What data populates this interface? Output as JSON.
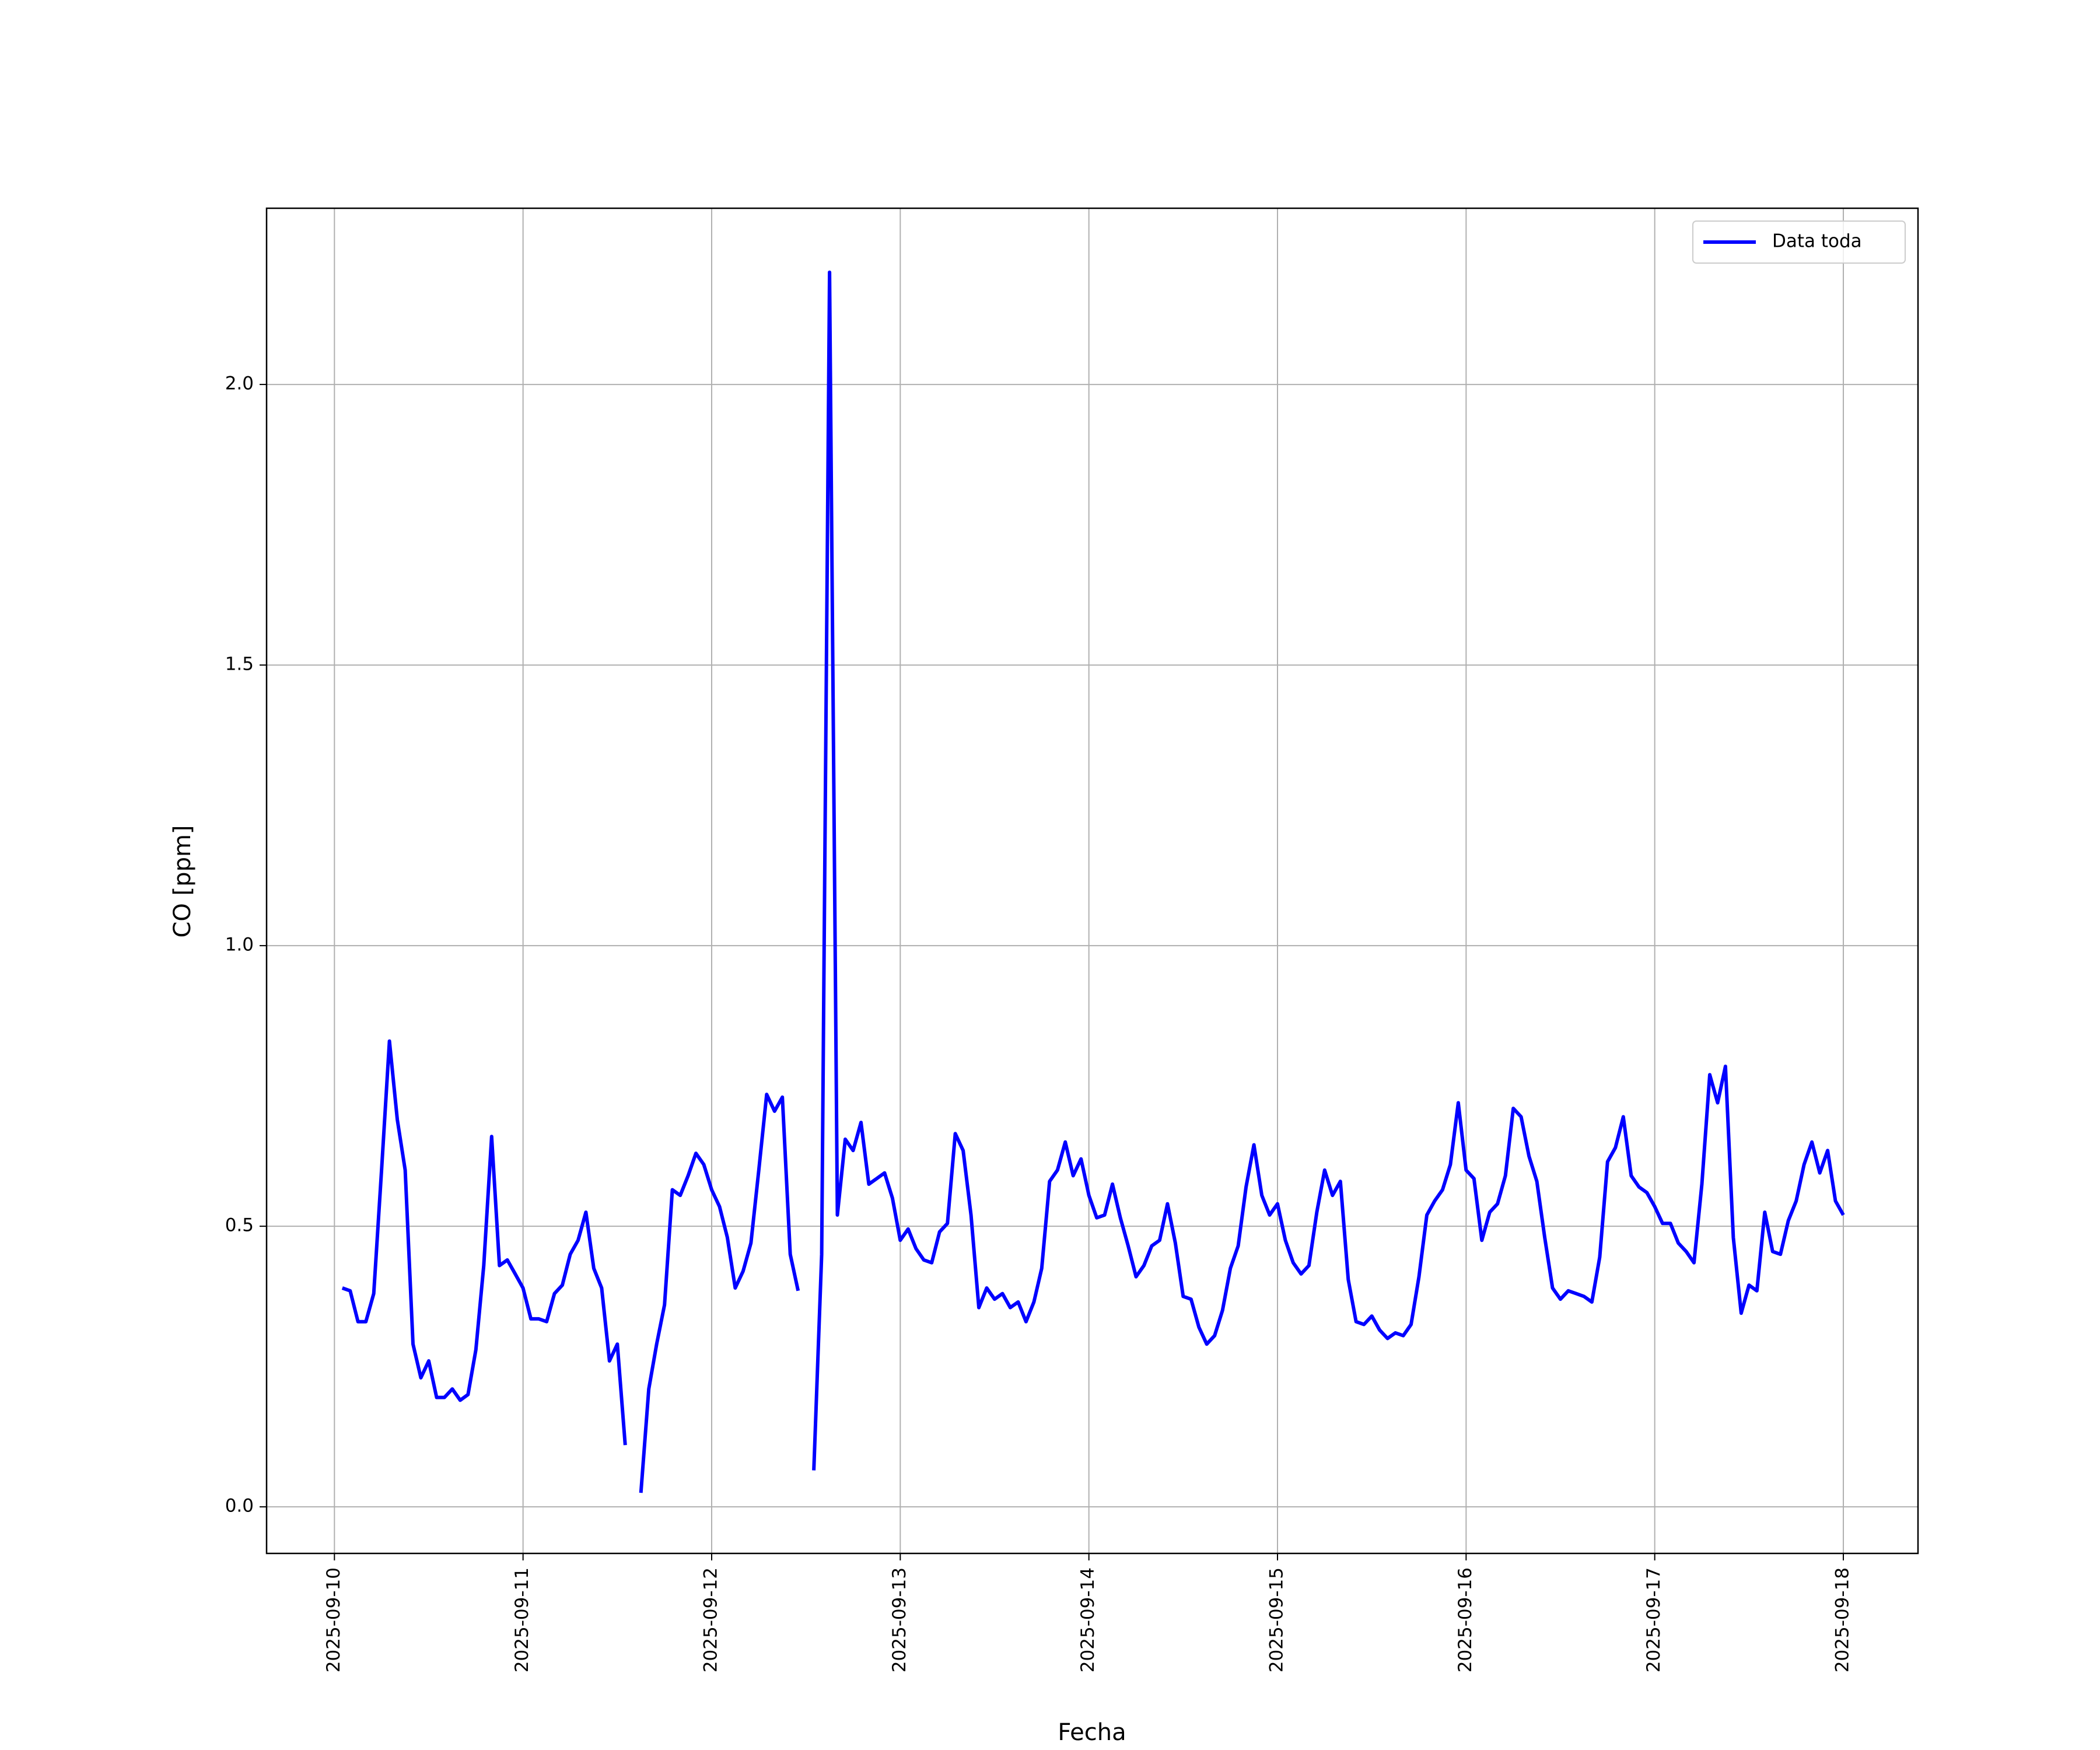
{
  "chart_data": {
    "type": "line",
    "xlabel": "Fecha",
    "ylabel": "CO [ppm]",
    "x": [
      "2025-09-10T01:00",
      "2025-09-10T02:00",
      "2025-09-10T03:00",
      "2025-09-10T04:00",
      "2025-09-10T05:00",
      "2025-09-10T06:00",
      "2025-09-10T07:00",
      "2025-09-10T08:00",
      "2025-09-10T09:00",
      "2025-09-10T10:00",
      "2025-09-10T11:00",
      "2025-09-10T12:00",
      "2025-09-10T13:00",
      "2025-09-10T14:00",
      "2025-09-10T15:00",
      "2025-09-10T16:00",
      "2025-09-10T17:00",
      "2025-09-10T18:00",
      "2025-09-10T19:00",
      "2025-09-10T20:00",
      "2025-09-10T21:00",
      "2025-09-10T22:00",
      "2025-09-10T23:00",
      "2025-09-11T00:00",
      "2025-09-11T01:00",
      "2025-09-11T02:00",
      "2025-09-11T03:00",
      "2025-09-11T04:00",
      "2025-09-11T05:00",
      "2025-09-11T06:00",
      "2025-09-11T07:00",
      "2025-09-11T08:00",
      "2025-09-11T09:00",
      "2025-09-11T10:00",
      "2025-09-11T11:00",
      "2025-09-11T12:00",
      "2025-09-11T13:00",
      "2025-09-11T14:00",
      "2025-09-11T15:00",
      "2025-09-11T16:00",
      "2025-09-11T17:00",
      "2025-09-11T18:00",
      "2025-09-11T19:00",
      "2025-09-11T20:00",
      "2025-09-11T21:00",
      "2025-09-11T22:00",
      "2025-09-11T23:00",
      "2025-09-12T00:00",
      "2025-09-12T01:00",
      "2025-09-12T02:00",
      "2025-09-12T03:00",
      "2025-09-12T04:00",
      "2025-09-12T05:00",
      "2025-09-12T06:00",
      "2025-09-12T07:00",
      "2025-09-12T08:00",
      "2025-09-12T09:00",
      "2025-09-12T10:00",
      "2025-09-12T11:00",
      "2025-09-12T12:00",
      "2025-09-12T13:00",
      "2025-09-12T14:00",
      "2025-09-12T15:00",
      "2025-09-12T16:00",
      "2025-09-12T17:00",
      "2025-09-12T18:00",
      "2025-09-12T19:00",
      "2025-09-12T20:00",
      "2025-09-12T21:00",
      "2025-09-12T22:00",
      "2025-09-12T23:00",
      "2025-09-13T00:00",
      "2025-09-13T01:00",
      "2025-09-13T02:00",
      "2025-09-13T03:00",
      "2025-09-13T04:00",
      "2025-09-13T05:00",
      "2025-09-13T06:00",
      "2025-09-13T07:00",
      "2025-09-13T08:00",
      "2025-09-13T09:00",
      "2025-09-13T10:00",
      "2025-09-13T11:00",
      "2025-09-13T12:00",
      "2025-09-13T13:00",
      "2025-09-13T14:00",
      "2025-09-13T15:00",
      "2025-09-13T16:00",
      "2025-09-13T17:00",
      "2025-09-13T18:00",
      "2025-09-13T19:00",
      "2025-09-13T20:00",
      "2025-09-13T21:00",
      "2025-09-13T22:00",
      "2025-09-13T23:00",
      "2025-09-14T00:00",
      "2025-09-14T01:00",
      "2025-09-14T02:00",
      "2025-09-14T03:00",
      "2025-09-14T04:00",
      "2025-09-14T05:00",
      "2025-09-14T06:00",
      "2025-09-14T07:00",
      "2025-09-14T08:00",
      "2025-09-14T09:00",
      "2025-09-14T10:00",
      "2025-09-14T11:00",
      "2025-09-14T12:00",
      "2025-09-14T13:00",
      "2025-09-14T14:00",
      "2025-09-14T15:00",
      "2025-09-14T16:00",
      "2025-09-14T17:00",
      "2025-09-14T18:00",
      "2025-09-14T19:00",
      "2025-09-14T20:00",
      "2025-09-14T21:00",
      "2025-09-14T22:00",
      "2025-09-14T23:00",
      "2025-09-15T00:00",
      "2025-09-15T01:00",
      "2025-09-15T02:00",
      "2025-09-15T03:00",
      "2025-09-15T04:00",
      "2025-09-15T05:00",
      "2025-09-15T06:00",
      "2025-09-15T07:00",
      "2025-09-15T08:00",
      "2025-09-15T09:00",
      "2025-09-15T10:00",
      "2025-09-15T11:00",
      "2025-09-15T12:00",
      "2025-09-15T13:00",
      "2025-09-15T14:00",
      "2025-09-15T15:00",
      "2025-09-15T16:00",
      "2025-09-15T17:00",
      "2025-09-15T18:00",
      "2025-09-15T19:00",
      "2025-09-15T20:00",
      "2025-09-15T21:00",
      "2025-09-15T22:00",
      "2025-09-15T23:00",
      "2025-09-16T00:00",
      "2025-09-16T01:00",
      "2025-09-16T02:00",
      "2025-09-16T03:00",
      "2025-09-16T04:00",
      "2025-09-16T05:00",
      "2025-09-16T06:00",
      "2025-09-16T07:00",
      "2025-09-16T08:00",
      "2025-09-16T09:00",
      "2025-09-16T10:00",
      "2025-09-16T11:00",
      "2025-09-16T12:00",
      "2025-09-16T13:00",
      "2025-09-16T14:00",
      "2025-09-16T15:00",
      "2025-09-16T16:00",
      "2025-09-16T17:00",
      "2025-09-16T18:00",
      "2025-09-16T19:00",
      "2025-09-16T20:00",
      "2025-09-16T21:00",
      "2025-09-16T22:00",
      "2025-09-16T23:00",
      "2025-09-17T00:00",
      "2025-09-17T01:00",
      "2025-09-17T02:00",
      "2025-09-17T03:00",
      "2025-09-17T04:00",
      "2025-09-17T05:00",
      "2025-09-17T06:00",
      "2025-09-17T07:00",
      "2025-09-17T08:00",
      "2025-09-17T09:00",
      "2025-09-17T10:00",
      "2025-09-17T11:00",
      "2025-09-17T12:00",
      "2025-09-17T13:00",
      "2025-09-17T14:00",
      "2025-09-17T15:00",
      "2025-09-17T16:00",
      "2025-09-17T17:00",
      "2025-09-17T18:00",
      "2025-09-17T19:00",
      "2025-09-17T20:00",
      "2025-09-17T21:00",
      "2025-09-17T22:00",
      "2025-09-17T23:00",
      "2025-09-18T00:00"
    ],
    "series": [
      {
        "name": "Data toda",
        "color": "#0000ff",
        "values": [
          0.39,
          0.385,
          0.33,
          0.33,
          0.38,
          0.6,
          0.83,
          0.69,
          0.6,
          0.29,
          0.23,
          0.26,
          0.195,
          0.195,
          0.21,
          0.19,
          0.2,
          0.28,
          0.43,
          0.66,
          0.43,
          0.44,
          0.415,
          0.39,
          0.335,
          0.335,
          0.33,
          0.38,
          0.395,
          0.45,
          0.475,
          0.525,
          0.425,
          0.39,
          0.26,
          0.29,
          0.11,
          null,
          0.025,
          0.21,
          0.29,
          0.36,
          0.565,
          0.555,
          0.59,
          0.63,
          0.61,
          0.565,
          0.535,
          0.48,
          0.39,
          0.42,
          0.47,
          0.6,
          0.735,
          0.705,
          0.73,
          0.45,
          0.385,
          null,
          0.065,
          0.45,
          2.2,
          0.52,
          0.655,
          0.635,
          0.685,
          0.575,
          0.585,
          0.595,
          0.55,
          0.475,
          0.495,
          0.46,
          0.44,
          0.435,
          0.49,
          0.505,
          0.665,
          0.635,
          0.52,
          0.355,
          0.39,
          0.37,
          0.38,
          0.355,
          0.365,
          0.33,
          0.365,
          0.425,
          0.58,
          0.6,
          0.65,
          0.59,
          0.62,
          0.555,
          0.515,
          0.52,
          0.575,
          0.515,
          0.465,
          0.41,
          0.43,
          0.465,
          0.475,
          0.54,
          0.47,
          0.375,
          0.37,
          0.32,
          0.29,
          0.305,
          0.35,
          0.425,
          0.465,
          0.57,
          0.645,
          0.555,
          0.52,
          0.54,
          0.475,
          0.435,
          0.415,
          0.43,
          0.525,
          0.6,
          0.555,
          0.58,
          0.405,
          0.33,
          0.325,
          0.34,
          0.315,
          0.3,
          0.31,
          0.305,
          0.325,
          0.41,
          0.52,
          0.545,
          0.565,
          0.61,
          0.72,
          0.6,
          0.585,
          0.475,
          0.525,
          0.54,
          0.59,
          0.71,
          0.695,
          0.625,
          0.58,
          0.48,
          0.39,
          0.37,
          0.385,
          0.38,
          0.375,
          0.365,
          0.445,
          0.615,
          0.64,
          0.695,
          0.59,
          0.57,
          0.56,
          0.535,
          0.505,
          0.505,
          0.47,
          0.455,
          0.435,
          0.575,
          0.77,
          0.72,
          0.785,
          0.48,
          0.345,
          0.395,
          0.385,
          0.525,
          0.455,
          0.45,
          0.51,
          0.545,
          0.61,
          0.65,
          0.595,
          0.635,
          0.545,
          0.52
        ]
      }
    ],
    "xlim": [
      "2025-09-09T15:22",
      "2025-09-18T09:30"
    ],
    "xticks": [
      "2025-09-10",
      "2025-09-11",
      "2025-09-12",
      "2025-09-13",
      "2025-09-14",
      "2025-09-15",
      "2025-09-16",
      "2025-09-17",
      "2025-09-18"
    ],
    "ylim": [
      -0.083,
      2.314
    ],
    "yticks": [
      {
        "value": 0,
        "label": "0.0"
      },
      0.5,
      {
        "value": 1,
        "label": "1.0"
      },
      1.5,
      {
        "value": 2,
        "label": "2.0"
      }
    ],
    "grid": true,
    "legend": "upper right"
  }
}
